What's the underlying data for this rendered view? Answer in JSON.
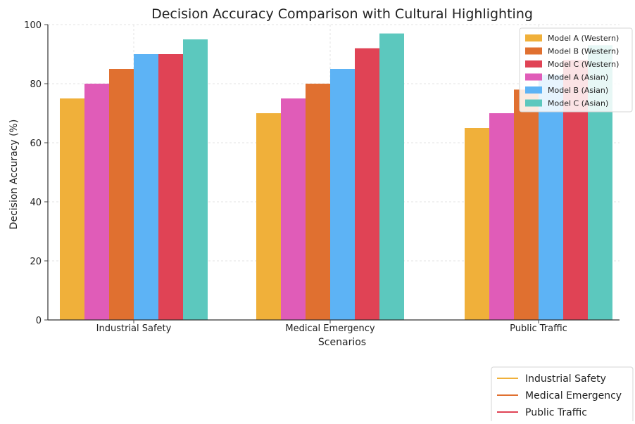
{
  "chart_data": {
    "type": "bar",
    "title": "Decision Accuracy Comparison with Cultural Highlighting",
    "xlabel": "Scenarios",
    "ylabel": "Decision Accuracy (%)",
    "ylim": [
      0,
      100
    ],
    "yticks": [
      "0",
      "20",
      "40",
      "60",
      "80",
      "100"
    ],
    "grid": true,
    "categories": [
      "Industrial Safety",
      "Medical Emergency",
      "Public Traffic"
    ],
    "series": [
      {
        "name": "Model A (Western)",
        "color": "#F0B03A",
        "values": [
          75,
          70,
          65
        ]
      },
      {
        "name": "Model A (Asian)",
        "color": "#E05CB8",
        "values": [
          80,
          75,
          70
        ]
      },
      {
        "name": "Model B (Western)",
        "color": "#E07030",
        "values": [
          85,
          80,
          78
        ]
      },
      {
        "name": "Model B (Asian)",
        "color": "#5DB3F5",
        "values": [
          90,
          85,
          83
        ]
      },
      {
        "name": "Model C (Western)",
        "color": "#E04355",
        "values": [
          90,
          92,
          88
        ]
      },
      {
        "name": "Model C (Asian)",
        "color": "#5CC8BE",
        "values": [
          95,
          97,
          93
        ]
      }
    ],
    "legend": {
      "placement": "top-right",
      "entries": [
        {
          "label": "Model A (Western)",
          "color": "#F0B03A"
        },
        {
          "label": "Model B (Western)",
          "color": "#E07030"
        },
        {
          "label": "Model C (Western)",
          "color": "#E04355"
        },
        {
          "label": "Model A (Asian)",
          "color": "#E05CB8"
        },
        {
          "label": "Model B (Asian)",
          "color": "#5DB3F5"
        },
        {
          "label": "Model C (Asian)",
          "color": "#5CC8BE"
        }
      ]
    },
    "line_legend": {
      "placement": "bottom-right",
      "entries": [
        {
          "label": "Industrial Safety",
          "color": "#F0B03A"
        },
        {
          "label": "Medical Emergency",
          "color": "#E07030"
        },
        {
          "label": "Public Traffic",
          "color": "#E04355"
        }
      ]
    }
  }
}
